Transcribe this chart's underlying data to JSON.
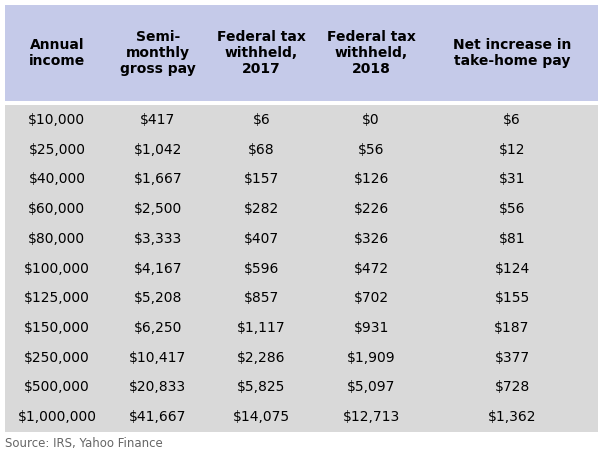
{
  "headers": [
    "Annual\nincome",
    "Semi-\nmonthly\ngross pay",
    "Federal tax\nwithheld,\n2017",
    "Federal tax\nwithheld,\n2018",
    "Net increase in\ntake-home pay"
  ],
  "rows": [
    [
      "$10,000",
      "$417",
      "$6",
      "$0",
      "$6"
    ],
    [
      "$25,000",
      "$1,042",
      "$68",
      "$56",
      "$12"
    ],
    [
      "$40,000",
      "$1,667",
      "$157",
      "$126",
      "$31"
    ],
    [
      "$60,000",
      "$2,500",
      "$282",
      "$226",
      "$56"
    ],
    [
      "$80,000",
      "$3,333",
      "$407",
      "$326",
      "$81"
    ],
    [
      "$100,000",
      "$4,167",
      "$596",
      "$472",
      "$124"
    ],
    [
      "$125,000",
      "$5,208",
      "$857",
      "$702",
      "$155"
    ],
    [
      "$150,000",
      "$6,250",
      "$1,117",
      "$931",
      "$187"
    ],
    [
      "$250,000",
      "$10,417",
      "$2,286",
      "$1,909",
      "$377"
    ],
    [
      "$500,000",
      "$20,833",
      "$5,825",
      "$5,097",
      "$728"
    ],
    [
      "$1,000,000",
      "$41,667",
      "$14,075",
      "$12,713",
      "$1,362"
    ]
  ],
  "header_bg": "#c5cae9",
  "row_bg": "#d9d9d9",
  "source_text": "Source: IRS, Yahoo Finance",
  "header_fontsize": 10,
  "cell_fontsize": 10,
  "source_fontsize": 8.5,
  "fig_width": 6.03,
  "fig_height": 4.54,
  "dpi": 100
}
